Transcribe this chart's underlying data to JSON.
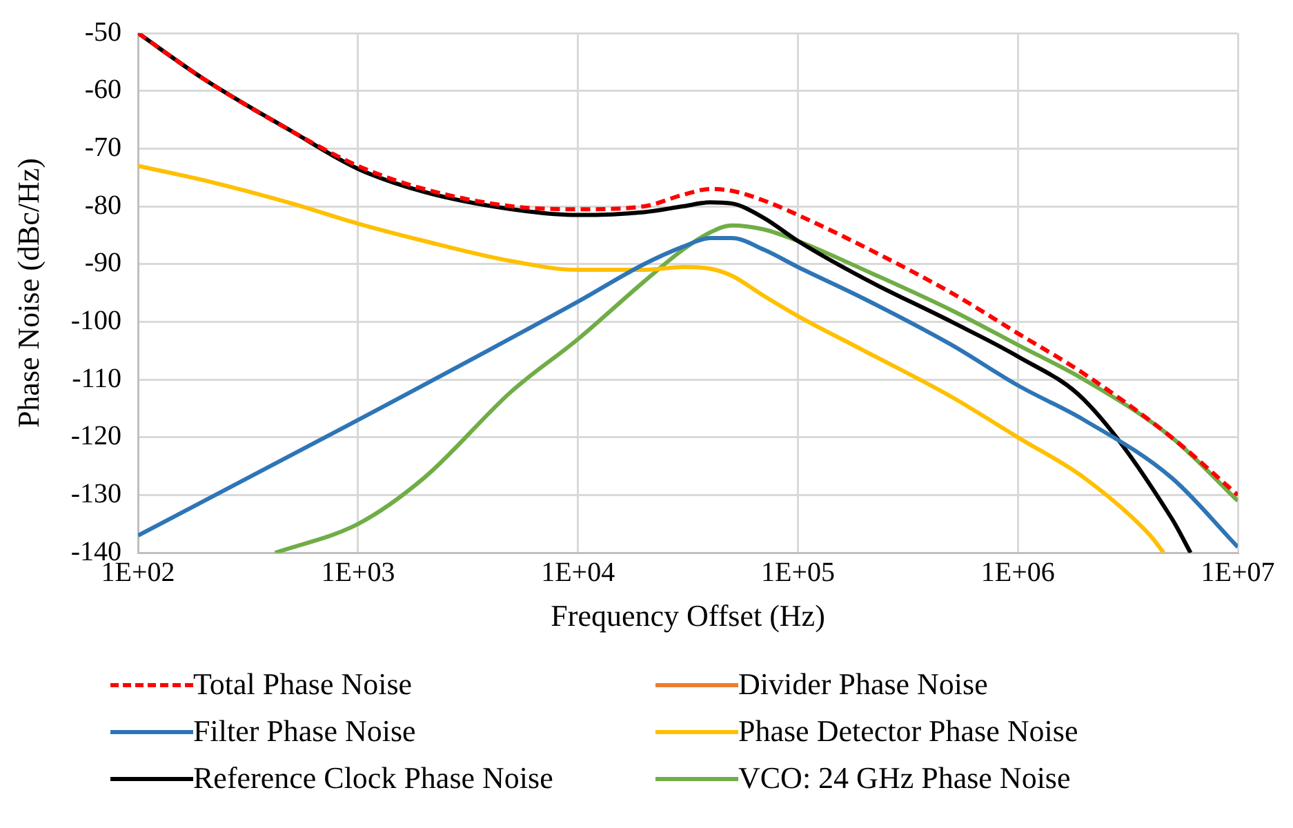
{
  "chart_data": {
    "type": "line",
    "xlabel": "Frequency Offset (Hz)",
    "ylabel": "Phase Noise (dBc/Hz)",
    "log": "x",
    "grid": true,
    "legend": "bottom",
    "marker": "none",
    "xlim": [
      100,
      10000000
    ],
    "xticks": [
      {
        "value": 100,
        "label": "1E+02"
      },
      {
        "value": 1000,
        "label": "1E+03"
      },
      {
        "value": 10000,
        "label": "1E+04"
      },
      {
        "value": 100000,
        "label": "1E+05"
      },
      {
        "value": 1000000,
        "label": "1E+06"
      },
      {
        "value": 10000000,
        "label": "1E+07"
      }
    ],
    "ylim": [
      -140,
      -50
    ],
    "yticks": [
      -140,
      -130,
      -120,
      -110,
      -100,
      -90,
      -80,
      -70,
      -60,
      -50
    ],
    "series": [
      {
        "name": "Total Phase Noise",
        "color": "#ff0000",
        "line_style": "dashed",
        "x": [
          100,
          200,
          500,
          1000,
          2000,
          5000,
          10000,
          20000,
          30000,
          40000,
          50000,
          70000,
          100000,
          200000,
          500000,
          1000000,
          2000000,
          5000000,
          10000000
        ],
        "values": [
          -50,
          -58,
          -67,
          -73,
          -77,
          -80,
          -80.5,
          -80,
          -78,
          -77,
          -77.3,
          -79,
          -81.5,
          -87,
          -95,
          -102,
          -109,
          -120,
          -130
        ]
      },
      {
        "name": "Divider Phase Noise",
        "color": "#ed7d31"
      },
      {
        "name": "Filter Phase Noise",
        "color": "#2e75b6",
        "x": [
          100,
          1000,
          10000,
          20000,
          30000,
          40000,
          50000,
          70000,
          100000,
          200000,
          500000,
          1000000,
          2000000,
          5000000,
          10000000
        ],
        "values": [
          -137,
          -117,
          -96.5,
          -90,
          -87,
          -85.5,
          -85.5,
          -87.5,
          -90.5,
          -96,
          -104,
          -111,
          -117,
          -127,
          -139
        ]
      },
      {
        "name": "Phase Detector Phase Noise",
        "color": "#ffc000",
        "x": [
          100,
          200,
          500,
          1000,
          2000,
          5000,
          10000,
          20000,
          30000,
          40000,
          50000,
          70000,
          100000,
          200000,
          500000,
          1000000,
          2000000,
          4000000,
          4600000
        ],
        "values": [
          -73,
          -75.5,
          -79.5,
          -83,
          -86,
          -89.5,
          -91,
          -91,
          -90.5,
          -90.8,
          -92,
          -95.5,
          -99,
          -105,
          -113,
          -120,
          -127,
          -137,
          -140
        ]
      },
      {
        "name": "Reference Clock Phase Noise",
        "color": "#000000",
        "x": [
          100,
          200,
          500,
          1000,
          2000,
          5000,
          10000,
          20000,
          30000,
          40000,
          50000,
          70000,
          100000,
          200000,
          500000,
          1000000,
          2000000,
          5000000,
          6100000
        ],
        "values": [
          -50,
          -58,
          -67,
          -73.5,
          -77.5,
          -80.5,
          -81.5,
          -81,
          -80,
          -79.3,
          -79.5,
          -82,
          -86,
          -92.5,
          -100,
          -106,
          -113.5,
          -134,
          -140
        ]
      },
      {
        "name": "VCO: 24 GHz Phase Noise",
        "color": "#70ad47",
        "x": [
          420,
          1000,
          2000,
          5000,
          10000,
          20000,
          30000,
          40000,
          50000,
          70000,
          100000,
          200000,
          500000,
          1000000,
          2000000,
          5000000,
          10000000
        ],
        "values": [
          -140,
          -135,
          -127,
          -112,
          -103,
          -93,
          -87.5,
          -84.5,
          -83.3,
          -84,
          -86,
          -91,
          -98,
          -104,
          -110,
          -120,
          -131
        ]
      }
    ]
  }
}
